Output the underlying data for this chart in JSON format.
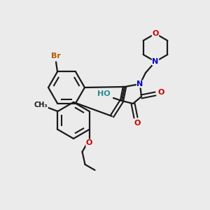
{
  "bg_color": "#ebebeb",
  "bond_color": "#1a1a1a",
  "atom_colors": {
    "Br": "#b85a00",
    "O": "#cc0000",
    "N": "#0000cc",
    "H": "#2e8b8b",
    "C": "#1a1a1a"
  },
  "fig_size": [
    3.0,
    3.0
  ],
  "dpi": 100
}
